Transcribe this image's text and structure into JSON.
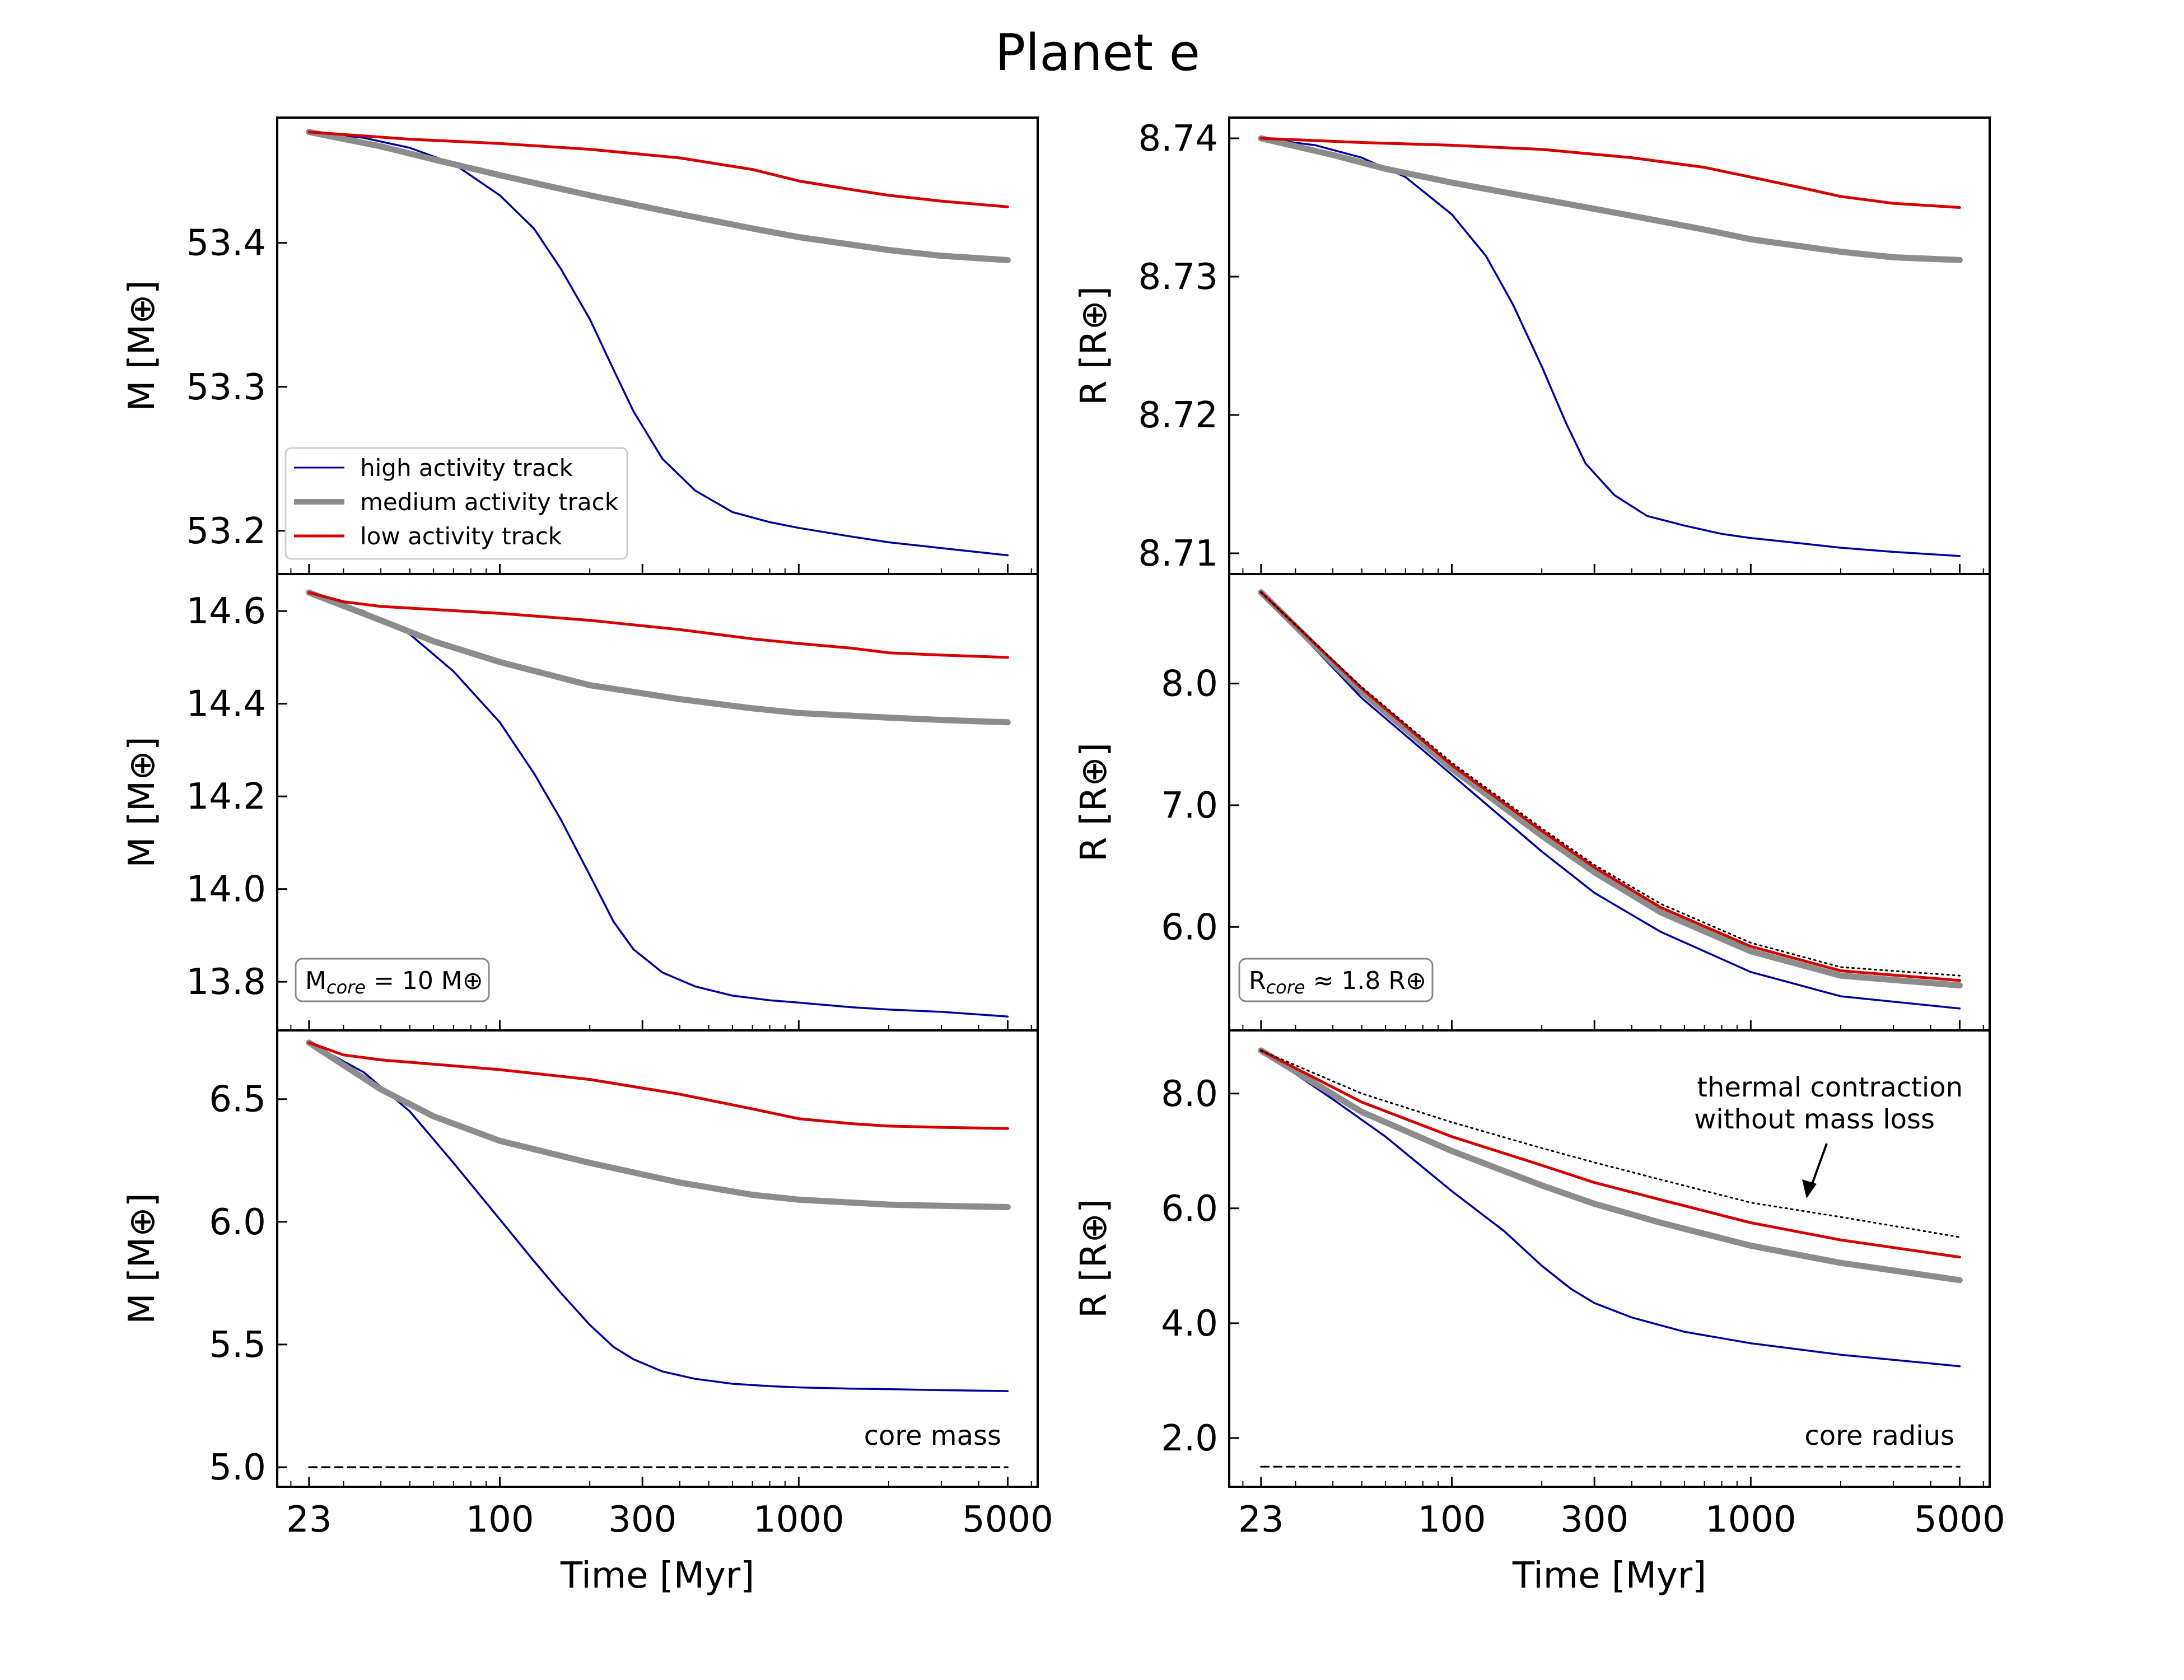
{
  "title": "Planet e",
  "legend": {
    "high": "high activity track",
    "medium": "medium activity track",
    "low": "low activity track"
  },
  "colors": {
    "high": "#00009a",
    "medium": "#8c8c8c",
    "low": "#d40000",
    "axes": "#000000"
  },
  "annotations": {
    "mcore_prefix": "M",
    "mcore_sub": "core",
    "mcore_rest": " = 10 M⊕",
    "rcore_prefix": "R",
    "rcore_sub": "core",
    "rcore_rest": " ≈ 1.8 R⊕",
    "core_mass": "core mass",
    "core_radius": "core radius",
    "thermal_line1": "thermal contraction",
    "thermal_line2": "without mass loss"
  },
  "chart_data": [
    {
      "type": "line",
      "panel": "mass-top",
      "xscale": "log",
      "xlim": [
        18,
        6300
      ],
      "ylim": [
        53.17,
        53.487
      ],
      "yticks": [
        53.2,
        53.3,
        53.4
      ],
      "ytick_labels": [
        "53.2",
        "53.3",
        "53.4"
      ],
      "ylabel": "M [M⊕]",
      "xlabel": "",
      "legend": "lower-left",
      "series": [
        {
          "name": "high activity track",
          "x": [
            23,
            35,
            50,
            70,
            100,
            130,
            160,
            200,
            240,
            280,
            350,
            450,
            600,
            800,
            1000,
            1500,
            2000,
            3000,
            5000
          ],
          "values": [
            53.477,
            53.473,
            53.466,
            53.455,
            53.433,
            53.41,
            53.382,
            53.347,
            53.312,
            53.283,
            53.25,
            53.228,
            53.213,
            53.206,
            53.202,
            53.196,
            53.192,
            53.188,
            53.183
          ]
        },
        {
          "name": "medium activity track",
          "x": [
            23,
            40,
            60,
            100,
            200,
            400,
            700,
            1000,
            2000,
            3000,
            5000
          ],
          "values": [
            53.477,
            53.467,
            53.458,
            53.447,
            53.433,
            53.42,
            53.41,
            53.404,
            53.395,
            53.391,
            53.388
          ]
        },
        {
          "name": "low activity track",
          "x": [
            23,
            50,
            100,
            200,
            400,
            700,
            1000,
            1500,
            2000,
            3000,
            5000
          ],
          "values": [
            53.477,
            53.472,
            53.469,
            53.465,
            53.459,
            53.451,
            53.443,
            53.437,
            53.433,
            53.429,
            53.425
          ]
        }
      ]
    },
    {
      "type": "line",
      "panel": "radius-top",
      "xscale": "log",
      "xlim": [
        18,
        6300
      ],
      "ylim": [
        8.7085,
        8.7415
      ],
      "yticks": [
        8.71,
        8.72,
        8.73,
        8.74
      ],
      "ytick_labels": [
        "8.71",
        "8.72",
        "8.73",
        "8.74"
      ],
      "ylabel": "R [R⊕]",
      "xlabel": "",
      "series": [
        {
          "name": "high activity track",
          "x": [
            23,
            35,
            50,
            70,
            100,
            130,
            160,
            200,
            240,
            280,
            350,
            450,
            600,
            800,
            1000,
            1500,
            2000,
            3000,
            5000
          ],
          "values": [
            8.74,
            8.7395,
            8.7386,
            8.7372,
            8.7345,
            8.7315,
            8.728,
            8.7235,
            8.7195,
            8.7165,
            8.7142,
            8.7127,
            8.712,
            8.7114,
            8.7111,
            8.7107,
            8.7104,
            8.7101,
            8.7098
          ]
        },
        {
          "name": "medium activity track",
          "x": [
            23,
            40,
            60,
            100,
            200,
            400,
            700,
            1000,
            2000,
            3000,
            5000
          ],
          "values": [
            8.74,
            8.7388,
            8.7378,
            8.7368,
            8.7356,
            8.7344,
            8.7334,
            8.7327,
            8.7318,
            8.7314,
            8.7312
          ]
        },
        {
          "name": "low activity track",
          "x": [
            23,
            50,
            100,
            200,
            400,
            700,
            1000,
            1500,
            2000,
            3000,
            5000
          ],
          "values": [
            8.74,
            8.7397,
            8.7395,
            8.7392,
            8.7386,
            8.7379,
            8.7372,
            8.7364,
            8.7358,
            8.7353,
            8.735
          ]
        }
      ]
    },
    {
      "type": "line",
      "panel": "mass-middle",
      "xscale": "log",
      "xlim": [
        18,
        6300
      ],
      "ylim": [
        13.695,
        14.68
      ],
      "yticks": [
        13.8,
        14.0,
        14.2,
        14.4,
        14.6
      ],
      "ytick_labels": [
        "13.8",
        "14.0",
        "14.2",
        "14.4",
        "14.6"
      ],
      "ylabel": "M [M⊕]",
      "xlabel": "",
      "series": [
        {
          "name": "high activity track",
          "x": [
            23,
            35,
            50,
            70,
            100,
            130,
            160,
            200,
            240,
            280,
            350,
            450,
            600,
            800,
            1000,
            1500,
            2000,
            3000,
            5000
          ],
          "values": [
            14.64,
            14.6,
            14.55,
            14.47,
            14.36,
            14.25,
            14.15,
            14.03,
            13.93,
            13.87,
            13.82,
            13.79,
            13.77,
            13.76,
            13.755,
            13.745,
            13.74,
            13.735,
            13.725
          ]
        },
        {
          "name": "medium activity track",
          "x": [
            23,
            40,
            60,
            100,
            200,
            400,
            700,
            1000,
            2000,
            3000,
            5000
          ],
          "values": [
            14.64,
            14.58,
            14.535,
            14.49,
            14.44,
            14.41,
            14.39,
            14.38,
            14.37,
            14.365,
            14.36
          ]
        },
        {
          "name": "low activity track",
          "x": [
            23,
            30,
            40,
            100,
            200,
            400,
            700,
            1000,
            1500,
            2000,
            3000,
            5000
          ],
          "values": [
            14.64,
            14.62,
            14.61,
            14.595,
            14.58,
            14.56,
            14.54,
            14.53,
            14.52,
            14.51,
            14.505,
            14.5
          ]
        }
      ]
    },
    {
      "type": "line",
      "panel": "radius-middle",
      "xscale": "log",
      "xlim": [
        18,
        6300
      ],
      "ylim": [
        5.15,
        8.9
      ],
      "yticks": [
        6.0,
        7.0,
        8.0
      ],
      "ytick_labels": [
        "6.0",
        "7.0",
        "8.0"
      ],
      "ylabel": "R [R⊕]",
      "xlabel": "",
      "series": [
        {
          "name": "high activity track",
          "x": [
            23,
            50,
            100,
            200,
            300,
            500,
            1000,
            2000,
            5000
          ],
          "values": [
            8.75,
            7.88,
            7.25,
            6.62,
            6.28,
            5.96,
            5.63,
            5.43,
            5.33
          ]
        },
        {
          "name": "medium activity track",
          "x": [
            23,
            50,
            100,
            200,
            300,
            500,
            1000,
            2000,
            5000
          ],
          "values": [
            8.75,
            7.93,
            7.3,
            6.75,
            6.45,
            6.12,
            5.8,
            5.6,
            5.52
          ]
        },
        {
          "name": "low activity track",
          "x": [
            23,
            50,
            100,
            200,
            300,
            500,
            1000,
            2000,
            5000
          ],
          "values": [
            8.75,
            7.96,
            7.33,
            6.79,
            6.49,
            6.16,
            5.84,
            5.64,
            5.56
          ]
        },
        {
          "name": "thermal contraction without mass loss",
          "x": [
            23,
            50,
            100,
            200,
            300,
            500,
            1000,
            2000,
            5000
          ],
          "values": [
            8.75,
            7.97,
            7.35,
            6.81,
            6.51,
            6.19,
            5.87,
            5.67,
            5.6
          ]
        }
      ]
    },
    {
      "type": "line",
      "panel": "mass-bottom",
      "xscale": "log",
      "xlim": [
        18,
        6300
      ],
      "ylim": [
        4.92,
        6.78
      ],
      "yticks": [
        5.0,
        5.5,
        6.0,
        6.5
      ],
      "ytick_labels": [
        "5.0",
        "5.5",
        "6.0",
        "6.5"
      ],
      "ylabel": "M [M⊕]",
      "xlabel": "Time [Myr]",
      "xticks": [
        23,
        100,
        300,
        1000,
        5000
      ],
      "xtick_labels": [
        "23",
        "100",
        "300",
        "1000",
        "5000"
      ],
      "series": [
        {
          "name": "high activity track",
          "x": [
            23,
            35,
            50,
            70,
            100,
            130,
            160,
            200,
            240,
            280,
            350,
            450,
            600,
            800,
            1000,
            1500,
            2000,
            3000,
            5000
          ],
          "values": [
            6.73,
            6.61,
            6.45,
            6.24,
            6.01,
            5.84,
            5.71,
            5.58,
            5.49,
            5.44,
            5.39,
            5.36,
            5.34,
            5.33,
            5.325,
            5.32,
            5.318,
            5.314,
            5.31
          ]
        },
        {
          "name": "medium activity track",
          "x": [
            23,
            40,
            60,
            100,
            200,
            400,
            700,
            1000,
            2000,
            3000,
            5000
          ],
          "values": [
            6.73,
            6.54,
            6.43,
            6.33,
            6.24,
            6.16,
            6.11,
            6.09,
            6.07,
            6.065,
            6.06
          ]
        },
        {
          "name": "low activity track",
          "x": [
            23,
            30,
            40,
            100,
            200,
            400,
            700,
            1000,
            1500,
            2000,
            3000,
            5000
          ],
          "values": [
            6.73,
            6.68,
            6.66,
            6.62,
            6.58,
            6.52,
            6.46,
            6.42,
            6.4,
            6.39,
            6.385,
            6.38
          ]
        },
        {
          "name": "core mass",
          "x": [
            23,
            5000
          ],
          "values": [
            5.0,
            5.0
          ]
        }
      ]
    },
    {
      "type": "line",
      "panel": "radius-bottom",
      "xscale": "log",
      "xlim": [
        18,
        6300
      ],
      "ylim": [
        1.15,
        9.1
      ],
      "yticks": [
        2.0,
        4.0,
        6.0,
        8.0
      ],
      "ytick_labels": [
        "2.0",
        "4.0",
        "6.0",
        "8.0"
      ],
      "ylabel": "R [R⊕]",
      "xlabel": "Time [Myr]",
      "xticks": [
        23,
        100,
        300,
        1000,
        5000
      ],
      "xtick_labels": [
        "23",
        "100",
        "300",
        "1000",
        "5000"
      ],
      "series": [
        {
          "name": "high activity track",
          "x": [
            23,
            40,
            60,
            100,
            150,
            200,
            250,
            300,
            400,
            600,
            1000,
            2000,
            5000
          ],
          "values": [
            8.75,
            7.9,
            7.25,
            6.3,
            5.6,
            5.0,
            4.6,
            4.35,
            4.1,
            3.85,
            3.65,
            3.45,
            3.25
          ]
        },
        {
          "name": "medium activity track",
          "x": [
            23,
            50,
            100,
            200,
            300,
            500,
            1000,
            2000,
            5000
          ],
          "values": [
            8.75,
            7.68,
            7.0,
            6.4,
            6.08,
            5.75,
            5.35,
            5.05,
            4.75
          ]
        },
        {
          "name": "low activity track",
          "x": [
            23,
            50,
            100,
            200,
            300,
            500,
            1000,
            2000,
            5000
          ],
          "values": [
            8.75,
            7.85,
            7.25,
            6.75,
            6.45,
            6.15,
            5.75,
            5.45,
            5.15
          ]
        },
        {
          "name": "thermal contraction without mass loss",
          "x": [
            23,
            50,
            100,
            200,
            300,
            500,
            1000,
            2000,
            5000
          ],
          "values": [
            8.75,
            8.0,
            7.5,
            7.05,
            6.8,
            6.5,
            6.1,
            5.85,
            5.5
          ]
        },
        {
          "name": "core radius",
          "x": [
            23,
            5000
          ],
          "values": [
            1.5,
            1.5
          ]
        }
      ]
    }
  ]
}
